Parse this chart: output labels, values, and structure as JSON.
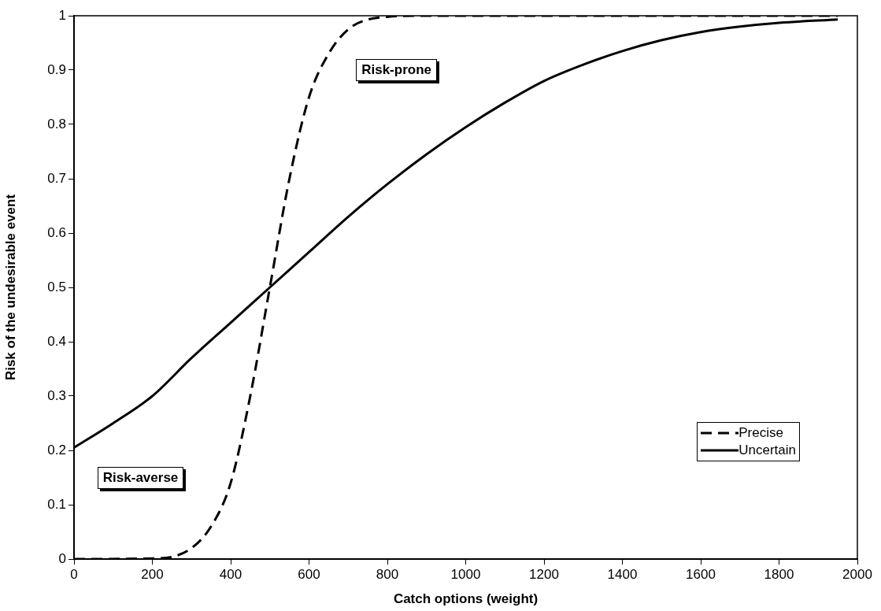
{
  "chart_data": {
    "type": "line",
    "xlabel": "Catch options (weight)",
    "ylabel": "Risk of the undesirable event",
    "xlim": [
      0,
      2000
    ],
    "xticks": [
      0,
      200,
      400,
      600,
      800,
      1000,
      1200,
      1400,
      1600,
      1800,
      2000
    ],
    "ylim": [
      0,
      1
    ],
    "yticks": [
      0,
      0.1,
      0.2,
      0.3,
      0.4,
      0.5,
      0.6,
      0.7,
      0.8,
      0.9,
      1
    ],
    "grid": false,
    "legend": "bottom right",
    "marker": "none",
    "annotations": [
      "Risk-prone",
      "Risk-averse"
    ],
    "series": [
      {
        "name": "Precise",
        "color": "#000000",
        "line_style": "dashed",
        "x": [
          0,
          200,
          250,
          300,
          350,
          400,
          450,
          500,
          550,
          600,
          650,
          700,
          750,
          800,
          900,
          1000,
          1200,
          1400,
          1600,
          1800,
          1950
        ],
        "values": [
          0,
          0.001,
          0.004,
          0.02,
          0.06,
          0.14,
          0.3,
          0.5,
          0.7,
          0.85,
          0.93,
          0.975,
          0.993,
          0.998,
          1,
          1,
          1,
          1,
          1,
          1,
          1
        ]
      },
      {
        "name": "Uncertain",
        "color": "#000000",
        "line_style": "solid",
        "x": [
          0,
          100,
          200,
          300,
          400,
          500,
          600,
          700,
          800,
          900,
          1000,
          1100,
          1200,
          1300,
          1400,
          1500,
          1600,
          1700,
          1800,
          1950
        ],
        "values": [
          0.205,
          0.25,
          0.3,
          0.37,
          0.435,
          0.5,
          0.565,
          0.63,
          0.69,
          0.745,
          0.795,
          0.84,
          0.88,
          0.91,
          0.935,
          0.955,
          0.97,
          0.98,
          0.987,
          0.993
        ]
      }
    ]
  }
}
